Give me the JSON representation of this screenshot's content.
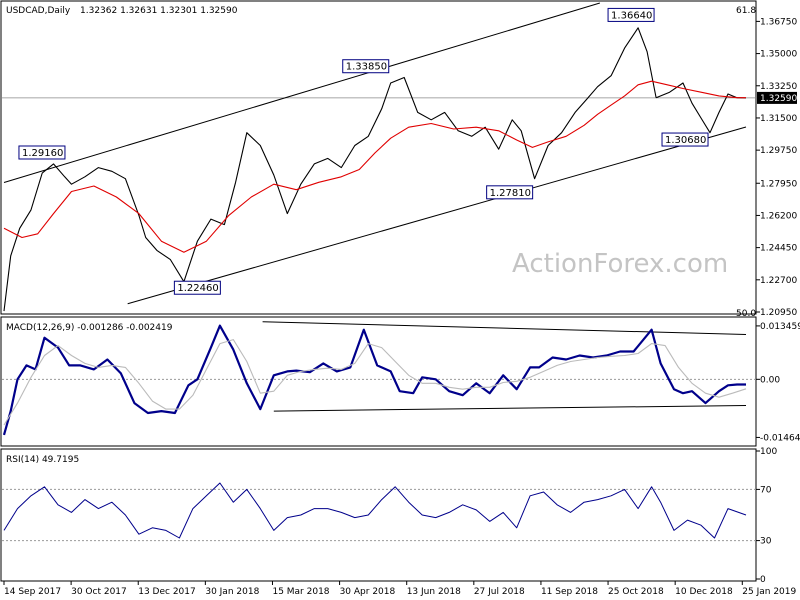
{
  "chart_data": {
    "type": "line",
    "panels": [
      {
        "id": "price",
        "title": "USDCAD,Daily",
        "ohlc_header": "1.32362 1.32631 1.32301 1.32590",
        "last_price": "1.32590",
        "ylim": [
          1.2095,
          1.3775
        ],
        "y_ticks": [
          "1.36750",
          "1.35000",
          "1.33250",
          "1.31500",
          "1.29750",
          "1.27950",
          "1.26200",
          "1.24450",
          "1.22700",
          "1.20950"
        ],
        "fib_labels": {
          "top": "61.8",
          "bottom": "50.0"
        },
        "series": [
          {
            "name": "Close",
            "color": "#000000",
            "x": [
              0,
              3,
              7,
              12,
              17,
              22,
              27,
              30,
              36,
              42,
              48,
              54,
              60,
              63,
              68,
              74,
              80,
              86,
              92,
              98,
              103,
              108,
              114,
              120,
              126,
              132,
              138,
              144,
              150,
              156,
              162,
              168,
              172,
              178,
              184,
              190,
              196,
              202,
              208,
              214,
              220,
              226,
              230,
              236,
              242,
              248,
              254,
              259,
              264,
              270,
              276,
              282,
              286,
              290
            ],
            "y": [
              1.21,
              1.24,
              1.255,
              1.265,
              1.285,
              1.29,
              1.283,
              1.279,
              1.283,
              1.288,
              1.286,
              1.282,
              1.262,
              1.25,
              1.243,
              1.238,
              1.226,
              1.248,
              1.26,
              1.257,
              1.28,
              1.307,
              1.3,
              1.284,
              1.263,
              1.279,
              1.29,
              1.293,
              1.288,
              1.3,
              1.305,
              1.32,
              1.334,
              1.337,
              1.318,
              1.314,
              1.318,
              1.308,
              1.305,
              1.31,
              1.298,
              1.314,
              1.308,
              1.282,
              1.3,
              1.307,
              1.318,
              1.325,
              1.332,
              1.338,
              1.353,
              1.364,
              1.351,
              1.326
            ]
          },
          {
            "name": "Close",
            "color": "#000000",
            "x": [
              290,
              296,
              302,
              306,
              310,
              314,
              318,
              322,
              326,
              330
            ],
            "y": [
              1.326,
              1.329,
              1.334,
              1.323,
              1.315,
              1.307,
              1.318,
              1.328,
              1.326,
              1.3259
            ]
          },
          {
            "name": "",
            "color": "#e00000",
            "x": [
              0,
              8,
              15,
              22,
              30,
              40,
              50,
              60,
              70,
              80,
              90,
              100,
              110,
              120,
              130,
              140,
              150,
              158,
              165,
              172,
              180,
              190,
              200,
              210,
              220,
              228,
              235,
              242,
              250,
              258,
              264,
              270,
              276,
              282,
              288,
              295,
              302,
              310,
              318,
              326,
              330
            ],
            "y": [
              1.255,
              1.25,
              1.252,
              1.263,
              1.275,
              1.278,
              1.272,
              1.263,
              1.248,
              1.242,
              1.248,
              1.262,
              1.272,
              1.279,
              1.276,
              1.28,
              1.283,
              1.287,
              1.296,
              1.304,
              1.31,
              1.312,
              1.309,
              1.31,
              1.308,
              1.303,
              1.299,
              1.302,
              1.305,
              1.311,
              1.317,
              1.322,
              1.327,
              1.333,
              1.335,
              1.333,
              1.331,
              1.329,
              1.327,
              1.326,
              1.326
            ]
          }
        ],
        "channel_lines": [
          {
            "x": [
              0,
              265
            ],
            "y": [
              1.2799,
              1.3775
            ]
          },
          {
            "x": [
              55,
              330
            ],
            "y": [
              1.214,
              1.3101
            ]
          }
        ],
        "annotations": [
          {
            "text": "1.36640",
            "x": 290,
            "y": 1.3664
          },
          {
            "text": "1.33850",
            "x": 172,
            "y": 1.3385
          },
          {
            "text": "1.29160",
            "x": 28,
            "y": 1.2916
          },
          {
            "text": "1.27810",
            "x": 236,
            "y": 1.2781
          },
          {
            "text": "1.30680",
            "x": 314,
            "y": 1.3068
          },
          {
            "text": "1.22460",
            "x": 86,
            "y": 1.2246
          }
        ],
        "watermark": "ActionForex.com"
      },
      {
        "id": "macd",
        "title": "MACD(12,26,9) -0.001286 -0.002419",
        "ylim": [
          -0.0163,
          0.0152
        ],
        "y_ticks": [
          "0.013459",
          "0.00",
          "-0.014644"
        ],
        "series": [
          {
            "name": "MACD",
            "color": "#00008b",
            "x": [
              0,
              3,
              6,
              10,
              14,
              18,
              24,
              29,
              34,
              40,
              46,
              52,
              58,
              64,
              70,
              76,
              82,
              86,
              92,
              96,
              102,
              108,
              114,
              120,
              126,
              130,
              136,
              142,
              148,
              154,
              160,
              166,
              172,
              176,
              182,
              186,
              192,
              198,
              204,
              210,
              216,
              222,
              228,
              234,
              238,
              244,
              250,
              256,
              262,
              268,
              274,
              280,
              288,
              292,
              298,
              302,
              306,
              312,
              318,
              322,
              326,
              330
            ],
            "y": [
              -0.014,
              -0.008,
              0.0,
              0.0035,
              0.0025,
              0.0105,
              0.008,
              0.0035,
              0.0035,
              0.0025,
              0.005,
              0.0015,
              -0.006,
              -0.0085,
              -0.008,
              -0.0085,
              -0.0015,
              0.0,
              0.008,
              0.0135,
              0.0075,
              -0.001,
              -0.0075,
              0.001,
              0.002,
              0.0022,
              0.0018,
              0.004,
              0.002,
              0.003,
              0.0125,
              0.0035,
              0.002,
              -0.003,
              -0.0035,
              0.0005,
              0.0,
              -0.003,
              -0.004,
              -0.001,
              -0.0035,
              0.001,
              -0.0025,
              0.003,
              0.003,
              0.0055,
              0.005,
              0.006,
              0.0055,
              0.006,
              0.007,
              0.007,
              0.0125,
              0.004,
              -0.0025,
              -0.0035,
              -0.003,
              -0.006,
              -0.003,
              -0.0015,
              -0.0013,
              -0.0013
            ]
          },
          {
            "name": "Signal",
            "color": "#bbbbbb",
            "x": [
              0,
              6,
              12,
              18,
              24,
              30,
              36,
              42,
              48,
              54,
              60,
              66,
              72,
              78,
              84,
              90,
              96,
              102,
              108,
              114,
              120,
              126,
              132,
              138,
              144,
              150,
              156,
              162,
              168,
              174,
              180,
              186,
              192,
              198,
              204,
              210,
              216,
              222,
              228,
              234,
              240,
              246,
              252,
              258,
              264,
              270,
              276,
              282,
              288,
              294,
              300,
              306,
              312,
              318,
              324,
              330
            ],
            "y": [
              -0.0115,
              -0.006,
              0.0005,
              0.006,
              0.0085,
              0.006,
              0.004,
              0.003,
              0.0035,
              0.003,
              -0.001,
              -0.0055,
              -0.0075,
              -0.0075,
              -0.004,
              0.0025,
              0.009,
              0.01,
              0.0045,
              -0.0035,
              -0.003,
              0.001,
              0.002,
              0.0025,
              0.0028,
              0.0025,
              0.004,
              0.009,
              0.008,
              0.0045,
              0.001,
              -0.001,
              -0.001,
              -0.002,
              -0.0025,
              -0.002,
              -0.002,
              -0.0008,
              -0.0005,
              0.0005,
              0.002,
              0.0035,
              0.0045,
              0.005,
              0.0055,
              0.0058,
              0.006,
              0.0065,
              0.009,
              0.0085,
              0.003,
              -0.001,
              -0.0035,
              -0.0045,
              -0.0035,
              -0.0024
            ]
          }
        ],
        "trend_lines": [
          {
            "x": [
              115,
              330
            ],
            "y": [
              0.0145,
              0.0113
            ]
          },
          {
            "x": [
              120,
              330
            ],
            "y": [
              -0.008,
              -0.0066
            ]
          }
        ]
      },
      {
        "id": "rsi",
        "title": "RSI(14) 49.7195",
        "ylim": [
          0,
          100
        ],
        "y_ticks": [
          "100",
          "70",
          "30",
          "0"
        ],
        "levels": [
          70,
          30
        ],
        "series": [
          {
            "name": "RSI",
            "color": "#00008b",
            "x": [
              0,
              6,
              12,
              18,
              24,
              30,
              36,
              42,
              48,
              54,
              60,
              66,
              72,
              78,
              84,
              90,
              96,
              102,
              108,
              114,
              120,
              126,
              132,
              138,
              144,
              150,
              156,
              162,
              168,
              174,
              180,
              186,
              192,
              198,
              204,
              210,
              216,
              222,
              228,
              234,
              240,
              246,
              252,
              258,
              264,
              270,
              276,
              282,
              288,
              292,
              298,
              304,
              310,
              316,
              322,
              330
            ],
            "y": [
              38,
              55,
              65,
              72,
              58,
              52,
              62,
              55,
              60,
              50,
              35,
              40,
              38,
              32,
              55,
              65,
              75,
              60,
              70,
              55,
              38,
              48,
              50,
              55,
              55,
              52,
              48,
              50,
              62,
              72,
              60,
              50,
              48,
              52,
              58,
              54,
              45,
              52,
              40,
              65,
              68,
              58,
              52,
              60,
              62,
              65,
              70,
              55,
              72,
              60,
              38,
              46,
              42,
              32,
              55,
              50
            ]
          }
        ]
      }
    ],
    "x_ticks": [
      "14 Sep 2017",
      "30 Oct 2017",
      "13 Dec 2017",
      "30 Jan 2018",
      "15 Mar 2018",
      "30 Apr 2018",
      "13 Jun 2018",
      "27 Jul 2018",
      "11 Sep 2018",
      "25 Oct 2018",
      "10 Dec 2018",
      "25 Jan 2019"
    ],
    "x_range": [
      0,
      330
    ]
  }
}
